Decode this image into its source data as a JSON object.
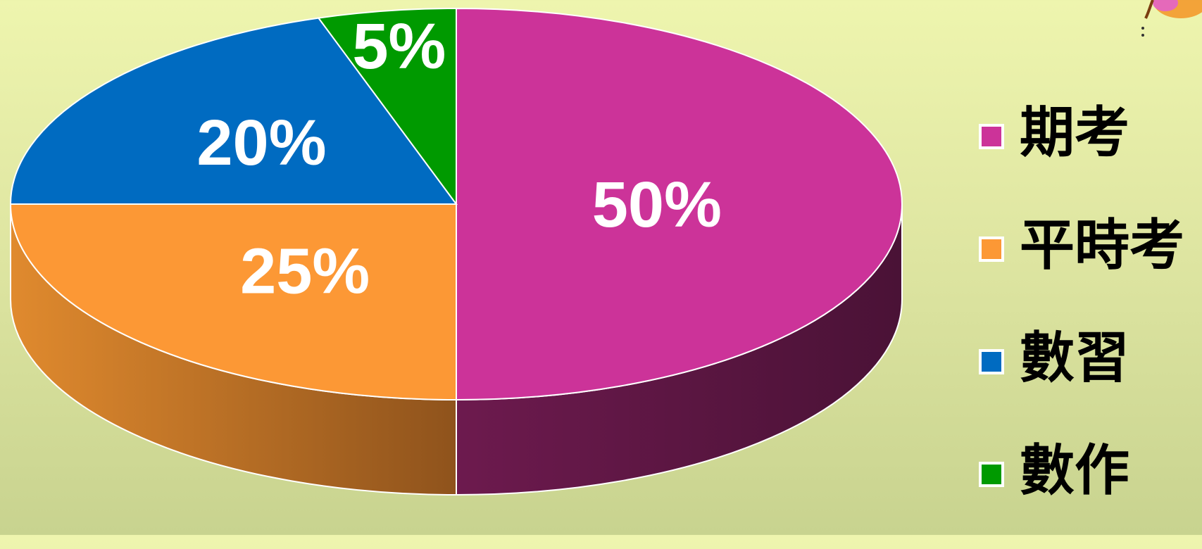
{
  "chart_data": {
    "type": "pie",
    "style": "3d",
    "slices": [
      {
        "label": "期考",
        "value": 50,
        "display": "50%",
        "color": "#cc3399",
        "side_color": "#6b1548"
      },
      {
        "label": "平時考",
        "value": 25,
        "display": "25%",
        "color": "#fc9835",
        "side_color": "#b9661f"
      },
      {
        "label": "數習",
        "value": 20,
        "display": "20%",
        "color": "#006bc1",
        "side_color": "#003c6e"
      },
      {
        "label": "數作",
        "value": 5,
        "display": "5%",
        "color": "#009a00",
        "side_color": "#005a00"
      }
    ],
    "legend_position": "right"
  },
  "decor": {
    "corner_flower_color": "#f39a2c"
  }
}
